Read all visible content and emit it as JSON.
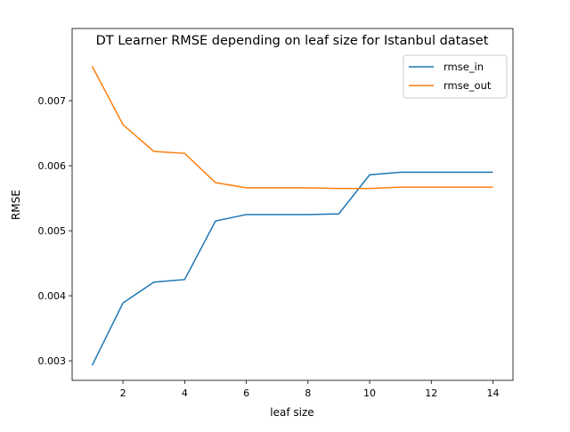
{
  "chart_data": {
    "type": "line",
    "title": "DT Learner RMSE depending on leaf size for Istanbul dataset",
    "xlabel": "leaf size",
    "ylabel": "RMSE",
    "xlim": [
      0.35,
      14.65
    ],
    "ylim": [
      0.0027,
      0.00811
    ],
    "xticks": [
      2,
      4,
      6,
      8,
      10,
      12,
      14
    ],
    "xtick_labels": [
      "2",
      "4",
      "6",
      "8",
      "10",
      "12",
      "14"
    ],
    "yticks": [
      0.003,
      0.004,
      0.005,
      0.006,
      0.007
    ],
    "ytick_labels": [
      "0.003",
      "0.004",
      "0.005",
      "0.006",
      "0.007"
    ],
    "grid": false,
    "legend_placement": "upper right",
    "x": [
      1,
      2,
      3,
      4,
      5,
      6,
      7,
      8,
      9,
      10,
      11,
      12,
      13,
      14
    ],
    "series": [
      {
        "name": "rmse_in",
        "color": "#1f77b4",
        "values": [
          0.00293,
          0.00389,
          0.00421,
          0.00425,
          0.00515,
          0.00525,
          0.00525,
          0.00525,
          0.00526,
          0.00586,
          0.0059,
          0.0059,
          0.0059,
          0.0059
        ]
      },
      {
        "name": "rmse_out",
        "color": "#ff7f0e",
        "values": [
          0.00753,
          0.00663,
          0.00622,
          0.00619,
          0.00574,
          0.00566,
          0.00566,
          0.00566,
          0.00565,
          0.00565,
          0.00567,
          0.00567,
          0.00567,
          0.00567
        ]
      }
    ]
  }
}
